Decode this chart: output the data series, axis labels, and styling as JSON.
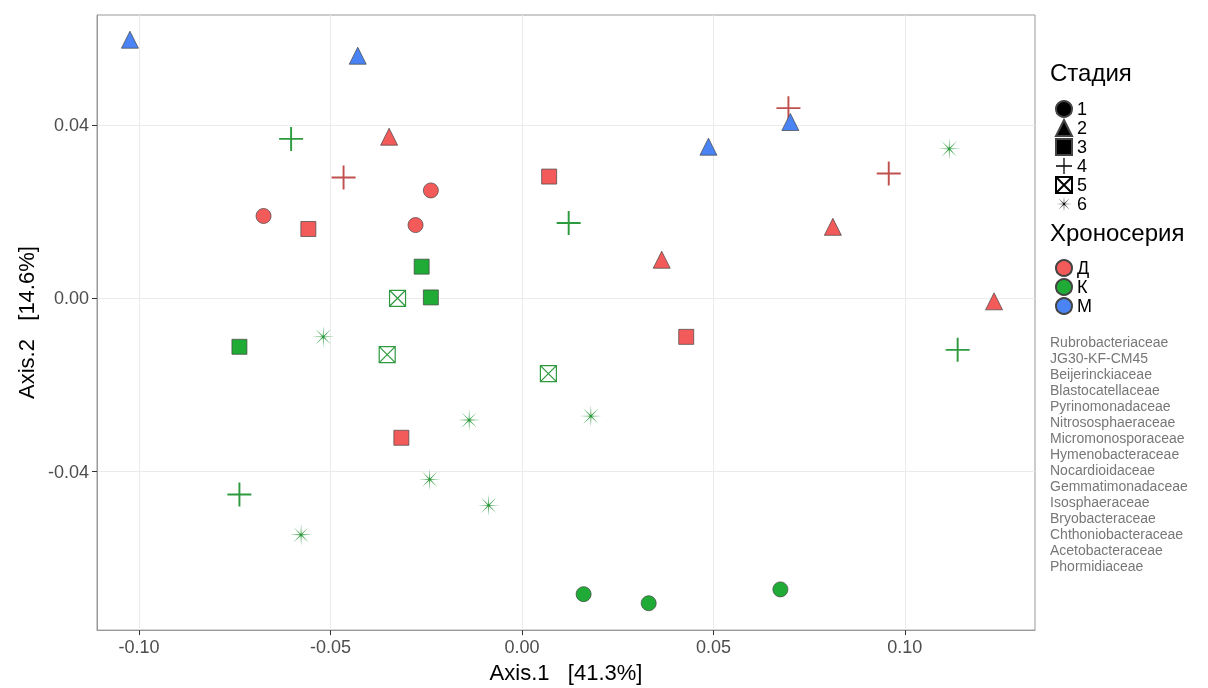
{
  "chart_data": {
    "type": "scatter",
    "xlabel": "Axis.1   [41.3%]",
    "ylabel": "Axis.2   [14.6%]",
    "legend_title": [
      "Стадия",
      "Хроносерия"
    ],
    "xlim": [
      -0.111,
      0.134
    ],
    "ylim": [
      -0.0766,
      0.0654
    ],
    "xticks": [
      {
        "value": -0.1,
        "label": "-0.10"
      },
      {
        "value": -0.05,
        "label": "-0.05"
      },
      {
        "value": 0,
        "label": "0.00"
      },
      {
        "value": 0.05,
        "label": "0.05"
      },
      {
        "value": 0.1,
        "label": "0.10"
      }
    ],
    "yticks": [
      {
        "value": -0.04,
        "label": "-0.04"
      },
      {
        "value": 0,
        "label": "0.00"
      },
      {
        "value": 0.04,
        "label": "0.04"
      }
    ],
    "grid": true,
    "legend": "right",
    "series": [
      {
        "name": "1",
        "color": "#000000",
        "marker": "circle"
      },
      {
        "name": "2",
        "color": "#000000",
        "marker": "triangle"
      },
      {
        "name": "3",
        "color": "#000000",
        "marker": "square"
      },
      {
        "name": "4",
        "color": "#000000",
        "marker": "cross"
      },
      {
        "name": "5",
        "color": "#000000"
      },
      {
        "name": "6",
        "color": "#000000",
        "marker": "star"
      },
      {
        "name": "Д",
        "color": "#f35b5a",
        "marker": "circle"
      },
      {
        "name": "К",
        "color": "#1fab35",
        "marker": "circle"
      },
      {
        "name": "М",
        "color": "#4a84f4",
        "marker": "circle"
      },
      {
        "color": "#f35b5a",
        "marker": "circle",
        "x": [
          -0.0675,
          -0.0238,
          -0.0278
        ],
        "values": [
          0.019,
          0.0249,
          0.0169
        ]
      },
      {
        "color": "#f35b5a",
        "marker": "triangle",
        "x": [
          -0.0347,
          0.0365,
          0.0812,
          0.1233
        ],
        "values": [
          0.0373,
          0.0089,
          0.0165,
          -0.0007
        ]
      },
      {
        "color": "#f35b5a",
        "marker": "square",
        "x": [
          -0.0558,
          0.0071,
          0.0429,
          -0.0315
        ],
        "values": [
          0.016,
          0.0281,
          -0.0089,
          -0.0322
        ]
      },
      {
        "color": "#c0504d",
        "marker": "cross",
        "x": [
          -0.0466,
          0.0696,
          0.0958
        ],
        "values": [
          0.0279,
          0.0439,
          0.0288
        ]
      },
      {
        "color": "#1fab35",
        "marker": "circle",
        "x": [
          0.0161,
          0.0331,
          0.0675
        ],
        "values": [
          -0.0683,
          -0.0704,
          -0.0672
        ]
      },
      {
        "color": "#1fab35",
        "marker": "square",
        "x": [
          -0.0738,
          -0.0262,
          -0.0238
        ],
        "values": [
          -0.0112,
          0.0073,
          0.0002
        ]
      },
      {
        "color": "#2e9a3e",
        "marker": "cross",
        "x": [
          -0.0603,
          0.0122,
          -0.0738,
          0.1138
        ],
        "values": [
          0.0368,
          0.0174,
          -0.0453,
          -0.0119
        ]
      },
      {
        "color": "#2e9a3e",
        "x": [
          -0.0325,
          -0.0352,
          0.0069
        ],
        "values": [
          0.0,
          -0.013,
          -0.0174
        ]
      },
      {
        "color": "#2e9a3e",
        "marker": "star",
        "x": [
          -0.0519,
          -0.0138,
          0.018,
          -0.0241,
          -0.0087,
          -0.0577,
          0.1116
        ],
        "values": [
          -0.0089,
          -0.0281,
          -0.0272,
          -0.0418,
          -0.0478,
          -0.0546,
          0.0345
        ]
      },
      {
        "color": "#4a84f4",
        "marker": "triangle",
        "x": [
          -0.1024,
          -0.0429,
          0.0487,
          0.0701
        ],
        "values": [
          0.0597,
          0.056,
          0.035,
          0.0407
        ]
      }
    ],
    "annotations": [
      "Rubrobacteriaceae",
      "JG30-KF-CM45",
      "Beijerinckiaceae",
      "Blastocatellaceae",
      "Pyrinomonadaceae",
      "Nitrososphaeraceae",
      "Micromonosporaceae",
      "Hymenobacteraceae",
      "Nocardioidaceae",
      "Gemmatimonadaceae",
      "Isosphaeraceae",
      "Bryobacteraceae",
      "Chthoniobacteraceae",
      "Acetobacteraceae",
      "Phormidiaceae"
    ]
  }
}
